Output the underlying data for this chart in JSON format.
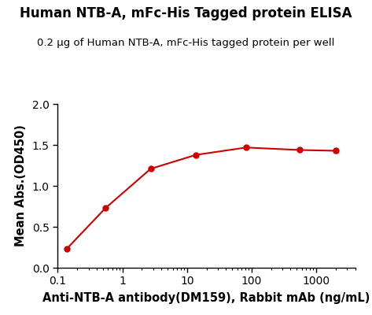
{
  "title": "Human NTB-A, mFc-His Tagged protein ELISA",
  "subtitle": "0.2 μg of Human NTB-A, mFc-His tagged protein per well",
  "xlabel": "Anti-NTB-A antibody(DM159), Rabbit mAb (ng/mL)",
  "ylabel": "Mean Abs.(OD450)",
  "x_data": [
    0.137,
    0.548,
    2.74,
    13.7,
    82.3,
    548,
    2000
  ],
  "y_data": [
    0.228,
    0.728,
    1.208,
    1.378,
    1.468,
    1.438,
    1.428
  ],
  "y_err": [
    0.005,
    0.01,
    0.01,
    0.012,
    0.015,
    0.01,
    0.025
  ],
  "xlim": [
    0.1,
    4000
  ],
  "ylim": [
    0.0,
    2.0
  ],
  "yticks": [
    0.0,
    0.5,
    1.0,
    1.5,
    2.0
  ],
  "xtick_locs": [
    0.1,
    1,
    10,
    100,
    1000
  ],
  "xtick_labels": [
    "0.1",
    "1",
    "10",
    "100",
    "1000"
  ],
  "line_color": "#cc0000",
  "marker_color": "#cc0000",
  "title_fontsize": 12,
  "subtitle_fontsize": 9.5,
  "axis_label_fontsize": 10.5,
  "tick_fontsize": 10,
  "background_color": "#ffffff"
}
